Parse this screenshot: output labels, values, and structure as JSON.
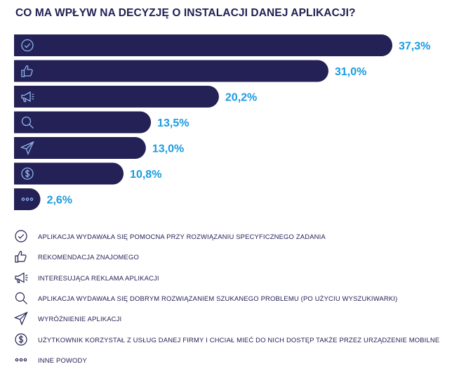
{
  "title": "CO MA WPŁYW NA DECYZJĘ O INSTALACJI DANEJ APLIKACJI?",
  "chart_data": {
    "type": "bar",
    "orientation": "horizontal",
    "title": "CO MA WPŁYW NA DECYZJĘ O INSTALACJI DANEJ APLIKACJI?",
    "categories": [
      "APLIKACJA WYDAWAŁA SIĘ POMOCNA PRZY ROZWIĄZANIU SPECYFICZNEGO ZADANIA",
      "REKOMENDACJA ZNAJOMEGO",
      "INTERESUJĄCA REKLAMA APLIKACJI",
      "APLIKACJA WYDAWAŁA SIĘ DOBRYM ROZWIĄZANIEM SZUKANEGO PROBLEMU (PO UŻYCIU WYSZUKIWARKI)",
      "WYRÓŻNIENIE APLIKACJI",
      "UŻYTKOWNIK KORZYSTAŁ Z USŁUG DANEJ FIRMY I CHCIAŁ MIEĆ DO NICH DOSTĘP TAKŻE PRZEZ URZĄDZENIE MOBILNE",
      "INNE POWODY"
    ],
    "values": [
      37.3,
      31.0,
      20.2,
      13.5,
      13.0,
      10.8,
      2.6
    ],
    "value_labels": [
      "37,3%",
      "31,0%",
      "20,2%",
      "13,5%",
      "13,0%",
      "10,8%",
      "2,6%"
    ],
    "icons": [
      "check-circle-icon",
      "thumbs-up-icon",
      "megaphone-icon",
      "search-icon",
      "send-icon",
      "dollar-coin-icon",
      "dots-icon"
    ],
    "legend_placement": "bottom",
    "grid": false,
    "colors": {
      "bar": "#232155",
      "value_label": "#1a9be0",
      "icon_on_bar": "#8fb4ef",
      "text": "#232155"
    }
  }
}
